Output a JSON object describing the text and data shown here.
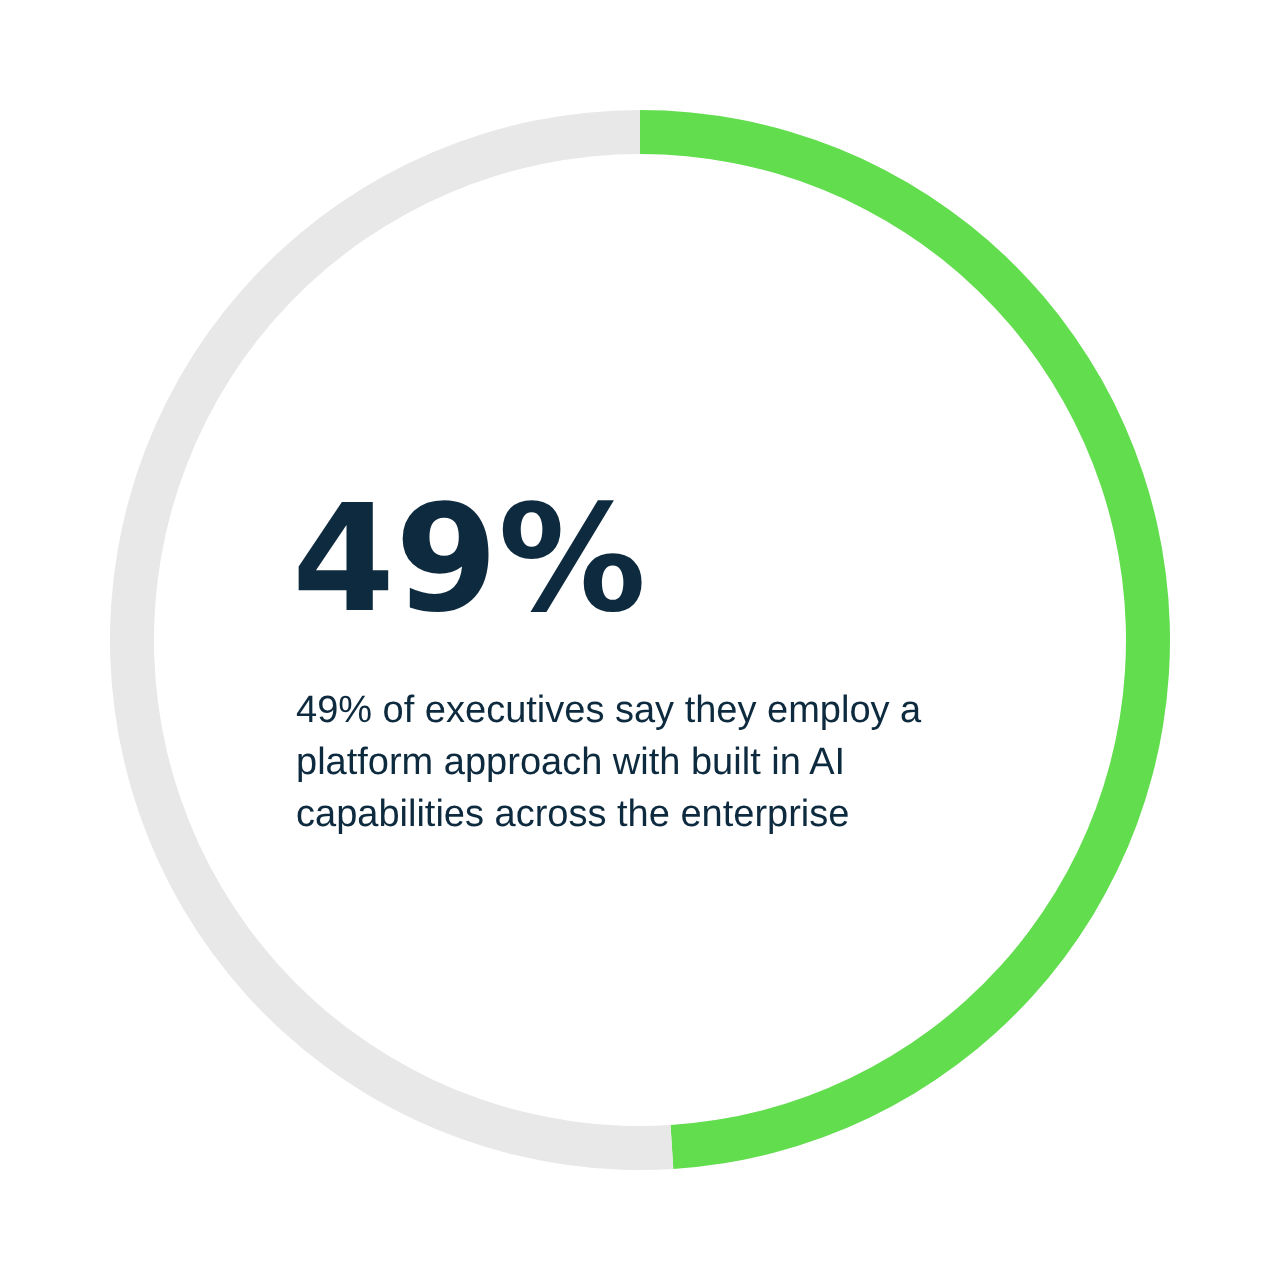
{
  "chart_data": {
    "type": "donut",
    "title": "49%",
    "subtitle": "49% of executives say they employ a platform approach with built in AI capabilities across the enterprise",
    "categories": [
      null,
      null
    ],
    "values": [
      49,
      51
    ],
    "colors": [
      "#62dd4e",
      "#e8e8e8"
    ]
  }
}
